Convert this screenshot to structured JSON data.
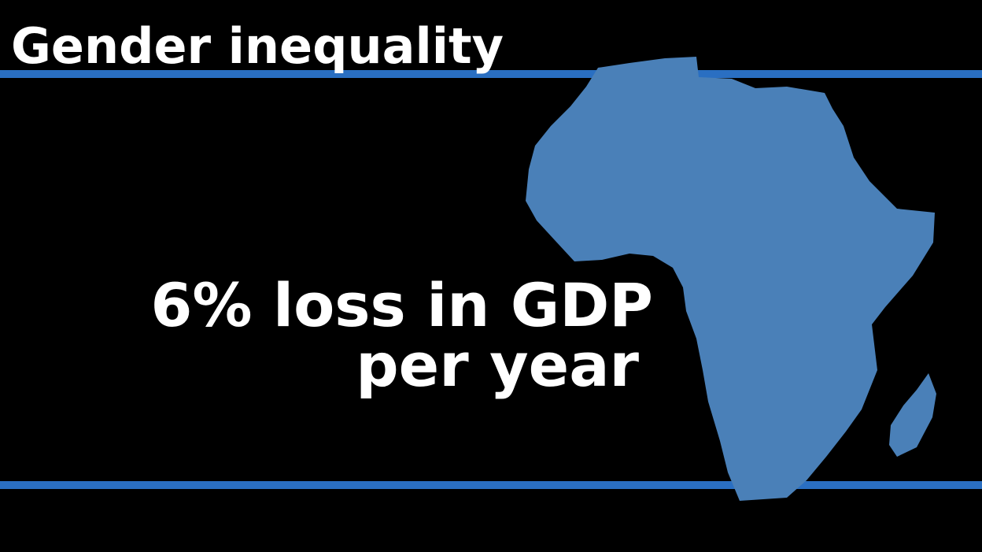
{
  "title": "Gender inequality",
  "statement": {
    "lines": [
      "6% loss in GDP",
      "per year"
    ]
  }
}
